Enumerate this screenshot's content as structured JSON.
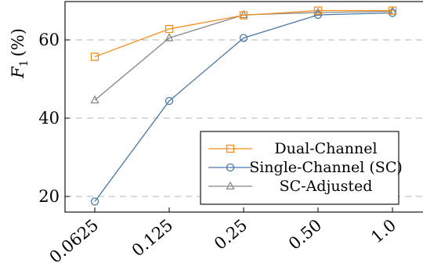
{
  "chart_data": {
    "type": "line",
    "categories": [
      "0.0625",
      "0.125",
      "0.25",
      "0.50",
      "1.0"
    ],
    "ylabel": "F1 (%)",
    "ylabel_parts": {
      "symbol": "F",
      "subscript": "1",
      "unit": "(%)"
    },
    "ylim": [
      15.5,
      70
    ],
    "yticks": [
      20,
      40,
      60
    ],
    "grid": "horizontal-dashed",
    "legend_position": "bottom-right",
    "series": [
      {
        "name": "Dual-Channel",
        "color": "#f28e1c",
        "marker": "square",
        "values": [
          55.7,
          62.8,
          66.3,
          67.5,
          67.5
        ]
      },
      {
        "name": "Single-Channel (SC)",
        "color": "#4a78a8",
        "marker": "circle",
        "values": [
          18.7,
          44.4,
          60.5,
          66.4,
          66.9
        ]
      },
      {
        "name": "SC-Adjusted",
        "color": "#888888",
        "marker": "triangle",
        "values": [
          44.6,
          60.5,
          66.4,
          67.0,
          67.3
        ]
      }
    ]
  }
}
